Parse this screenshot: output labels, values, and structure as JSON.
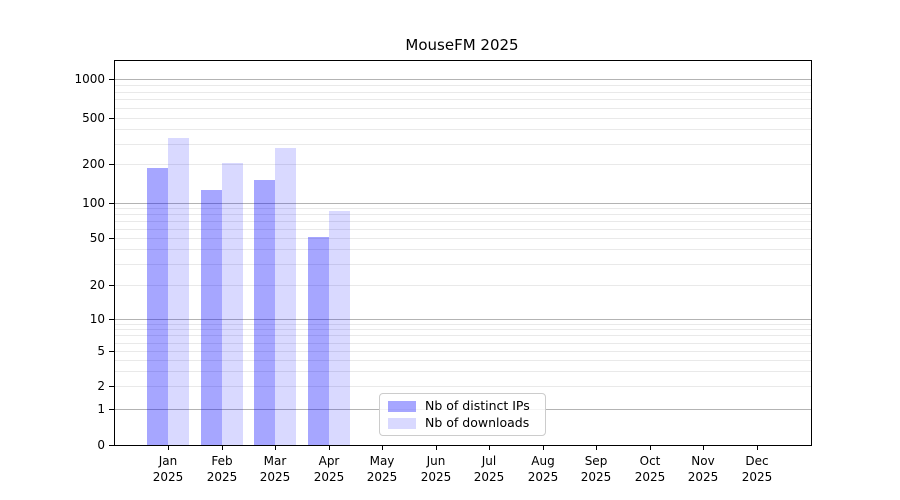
{
  "title": "MouseFM 2025",
  "chart_data": {
    "type": "bar",
    "title": "MouseFM 2025",
    "categories": [
      "Jan",
      "Feb",
      "Mar",
      "Apr",
      "May",
      "Jun",
      "Jul",
      "Aug",
      "Sep",
      "Oct",
      "Nov",
      "Dec"
    ],
    "category_year": "2025",
    "series": [
      {
        "name": "Nb of distinct IPs",
        "color": "rgba(0,0,255,0.35)",
        "values": [
          185,
          126,
          150,
          51,
          0,
          0,
          0,
          0,
          0,
          0,
          0,
          0
        ]
      },
      {
        "name": "Nb of downloads",
        "color": "rgba(0,0,255,0.15)",
        "values": [
          335,
          205,
          275,
          85,
          0,
          0,
          0,
          0,
          0,
          0,
          0,
          0
        ]
      }
    ],
    "yscale": "symlog",
    "y_ticks": [
      0,
      1,
      2,
      5,
      10,
      20,
      50,
      100,
      200,
      500,
      1000
    ],
    "ylim": [
      0,
      1400
    ],
    "xlabel": "",
    "ylabel": "",
    "grid": true,
    "grid_major_color": "#b3b3b3",
    "grid_minor_color": "#e9e9e9",
    "axis_color": "#000000",
    "legend_position": "lower center",
    "legend_border_color": "#cccccc",
    "background": "#ffffff"
  }
}
